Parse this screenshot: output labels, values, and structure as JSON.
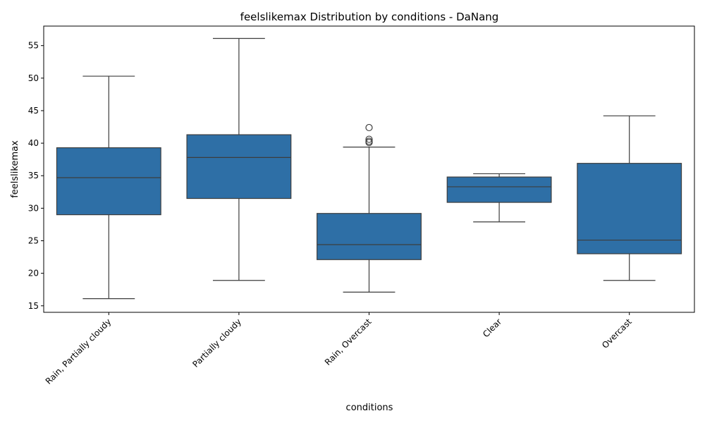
{
  "chart_data": {
    "type": "box",
    "title": "feelslikemax Distribution by conditions - DaNang",
    "xlabel": "conditions",
    "ylabel": "feelslikemax",
    "ylim": [
      14.0,
      58.0
    ],
    "yticks": [
      15,
      20,
      25,
      30,
      35,
      40,
      45,
      50,
      55
    ],
    "grid": false,
    "box_color": "#2e6fa6",
    "line_color": "#3d3d3d",
    "categories": [
      "Rain, Partially cloudy",
      "Partially cloudy",
      "Rain, Overcast",
      "Clear",
      "Overcast"
    ],
    "boxes": [
      {
        "whisker_low": 16.1,
        "q1": 29.0,
        "median": 34.7,
        "q3": 39.3,
        "whisker_high": 50.3,
        "outliers": []
      },
      {
        "whisker_low": 18.9,
        "q1": 31.5,
        "median": 37.8,
        "q3": 41.3,
        "whisker_high": 56.1,
        "outliers": []
      },
      {
        "whisker_low": 17.1,
        "q1": 22.1,
        "median": 24.4,
        "q3": 29.2,
        "whisker_high": 39.4,
        "outliers": [
          40.1,
          40.3,
          40.6,
          42.4
        ]
      },
      {
        "whisker_low": 27.9,
        "q1": 30.9,
        "median": 33.3,
        "q3": 34.8,
        "whisker_high": 35.3,
        "outliers": []
      },
      {
        "whisker_low": 18.9,
        "q1": 23.0,
        "median": 25.1,
        "q3": 36.9,
        "whisker_high": 44.2,
        "outliers": []
      }
    ]
  }
}
